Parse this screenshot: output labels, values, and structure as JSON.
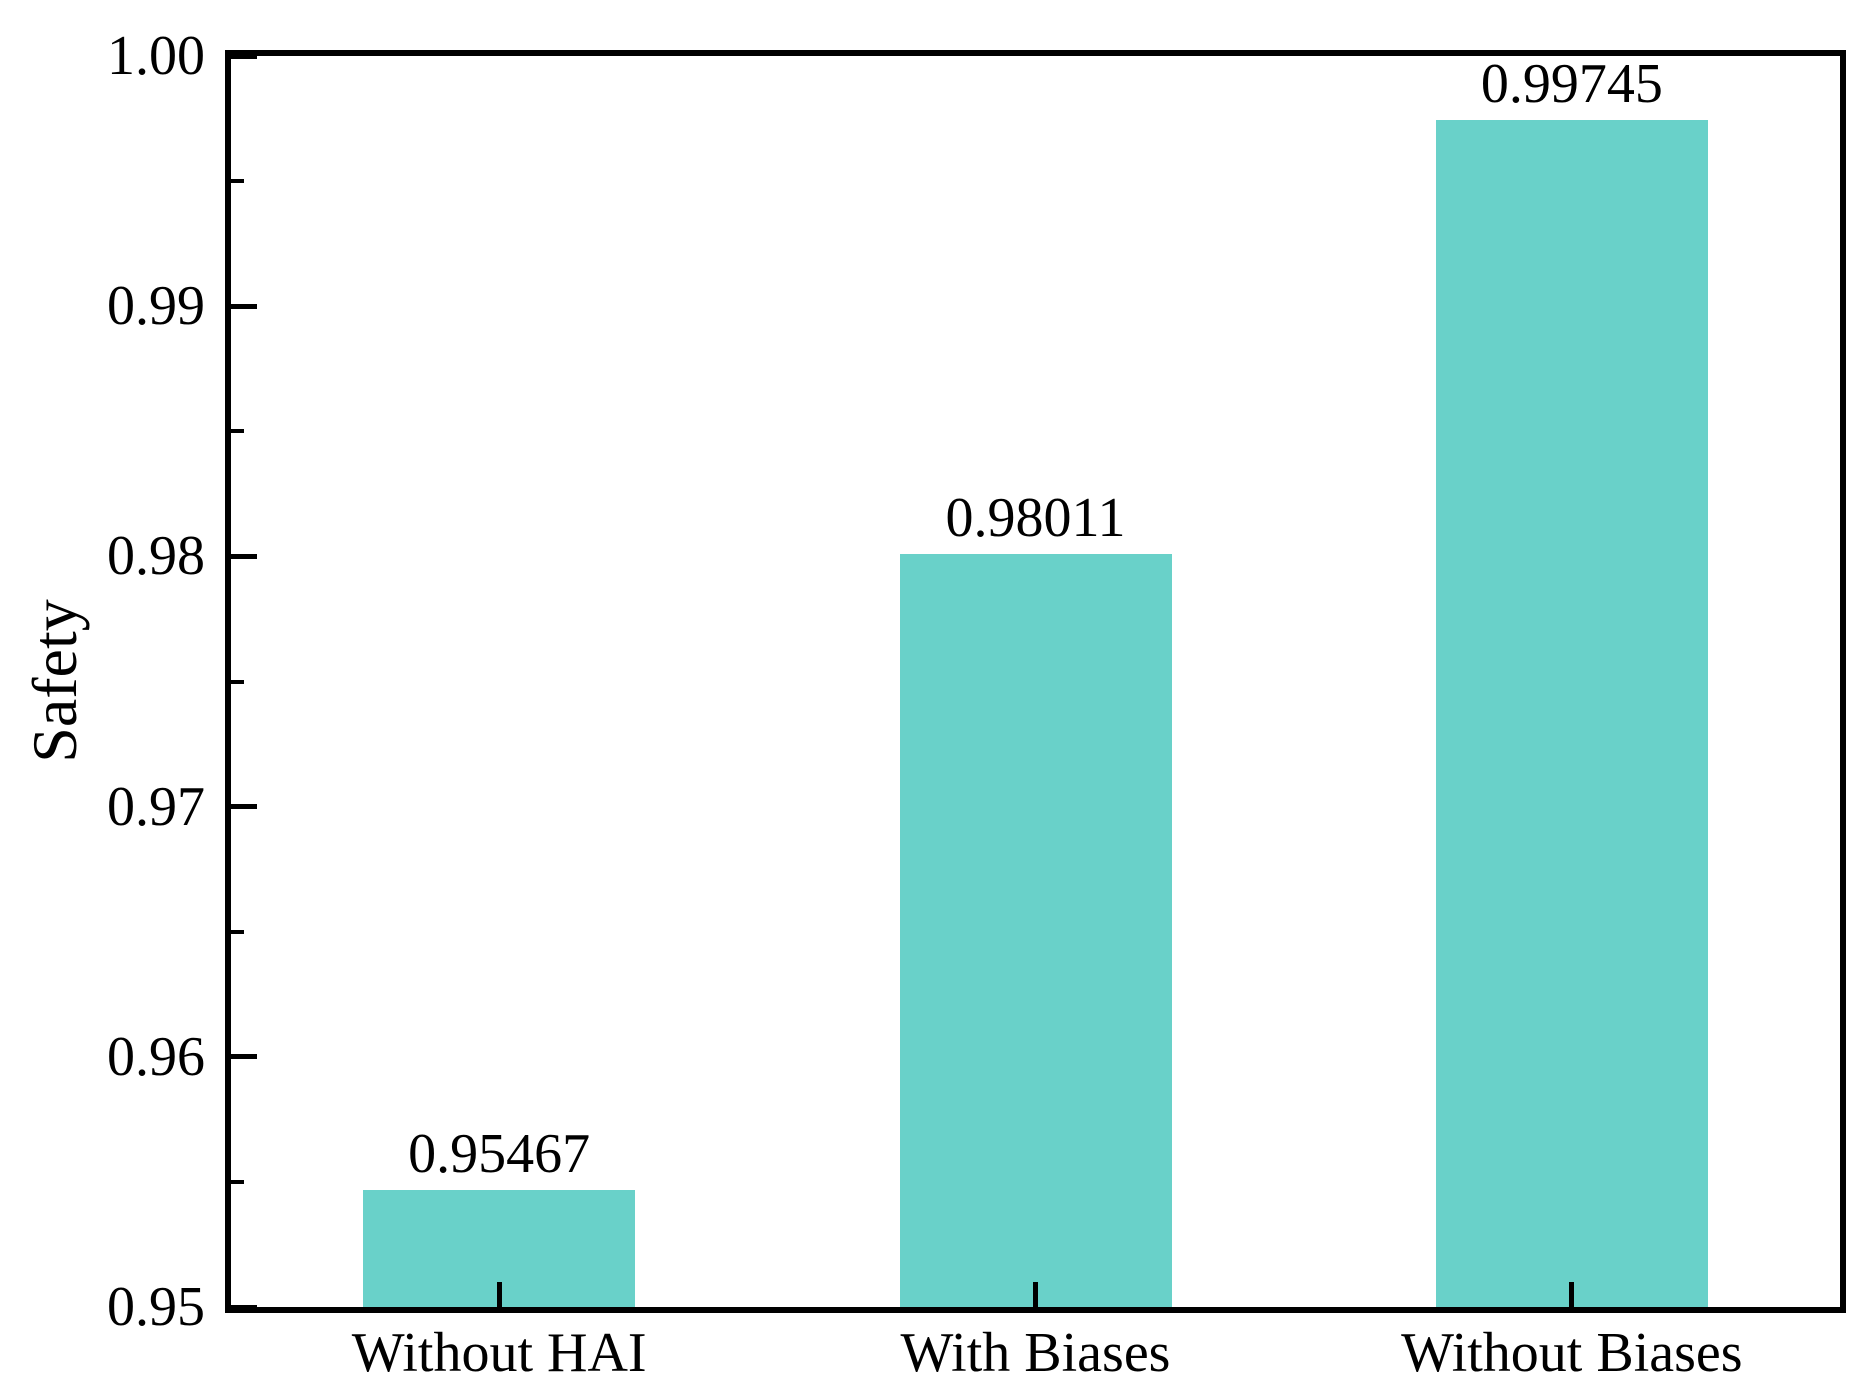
{
  "chart_data": {
    "type": "bar",
    "title": "",
    "xlabel": "",
    "ylabel": "Safety",
    "categories": [
      "Without HAI",
      "With Biases",
      "Without Biases"
    ],
    "values": [
      0.95467,
      0.98011,
      0.99745
    ],
    "bar_value_labels": [
      "0.95467",
      "0.98011",
      "0.99745"
    ],
    "ylim": [
      0.95,
      1.0
    ],
    "y_major_ticks": [
      0.95,
      0.96,
      0.97,
      0.98,
      0.99,
      1.0
    ],
    "y_major_tick_labels": [
      "0.95",
      "0.96",
      "0.97",
      "0.98",
      "0.99",
      "1.00"
    ],
    "y_minor_ticks": [
      0.955,
      0.965,
      0.975,
      0.985,
      0.995
    ],
    "grid": false,
    "legend": null,
    "bar_color": "#69D1C9",
    "axis_color": "#000000",
    "text_color": "#000000",
    "background_color": "#ffffff"
  }
}
